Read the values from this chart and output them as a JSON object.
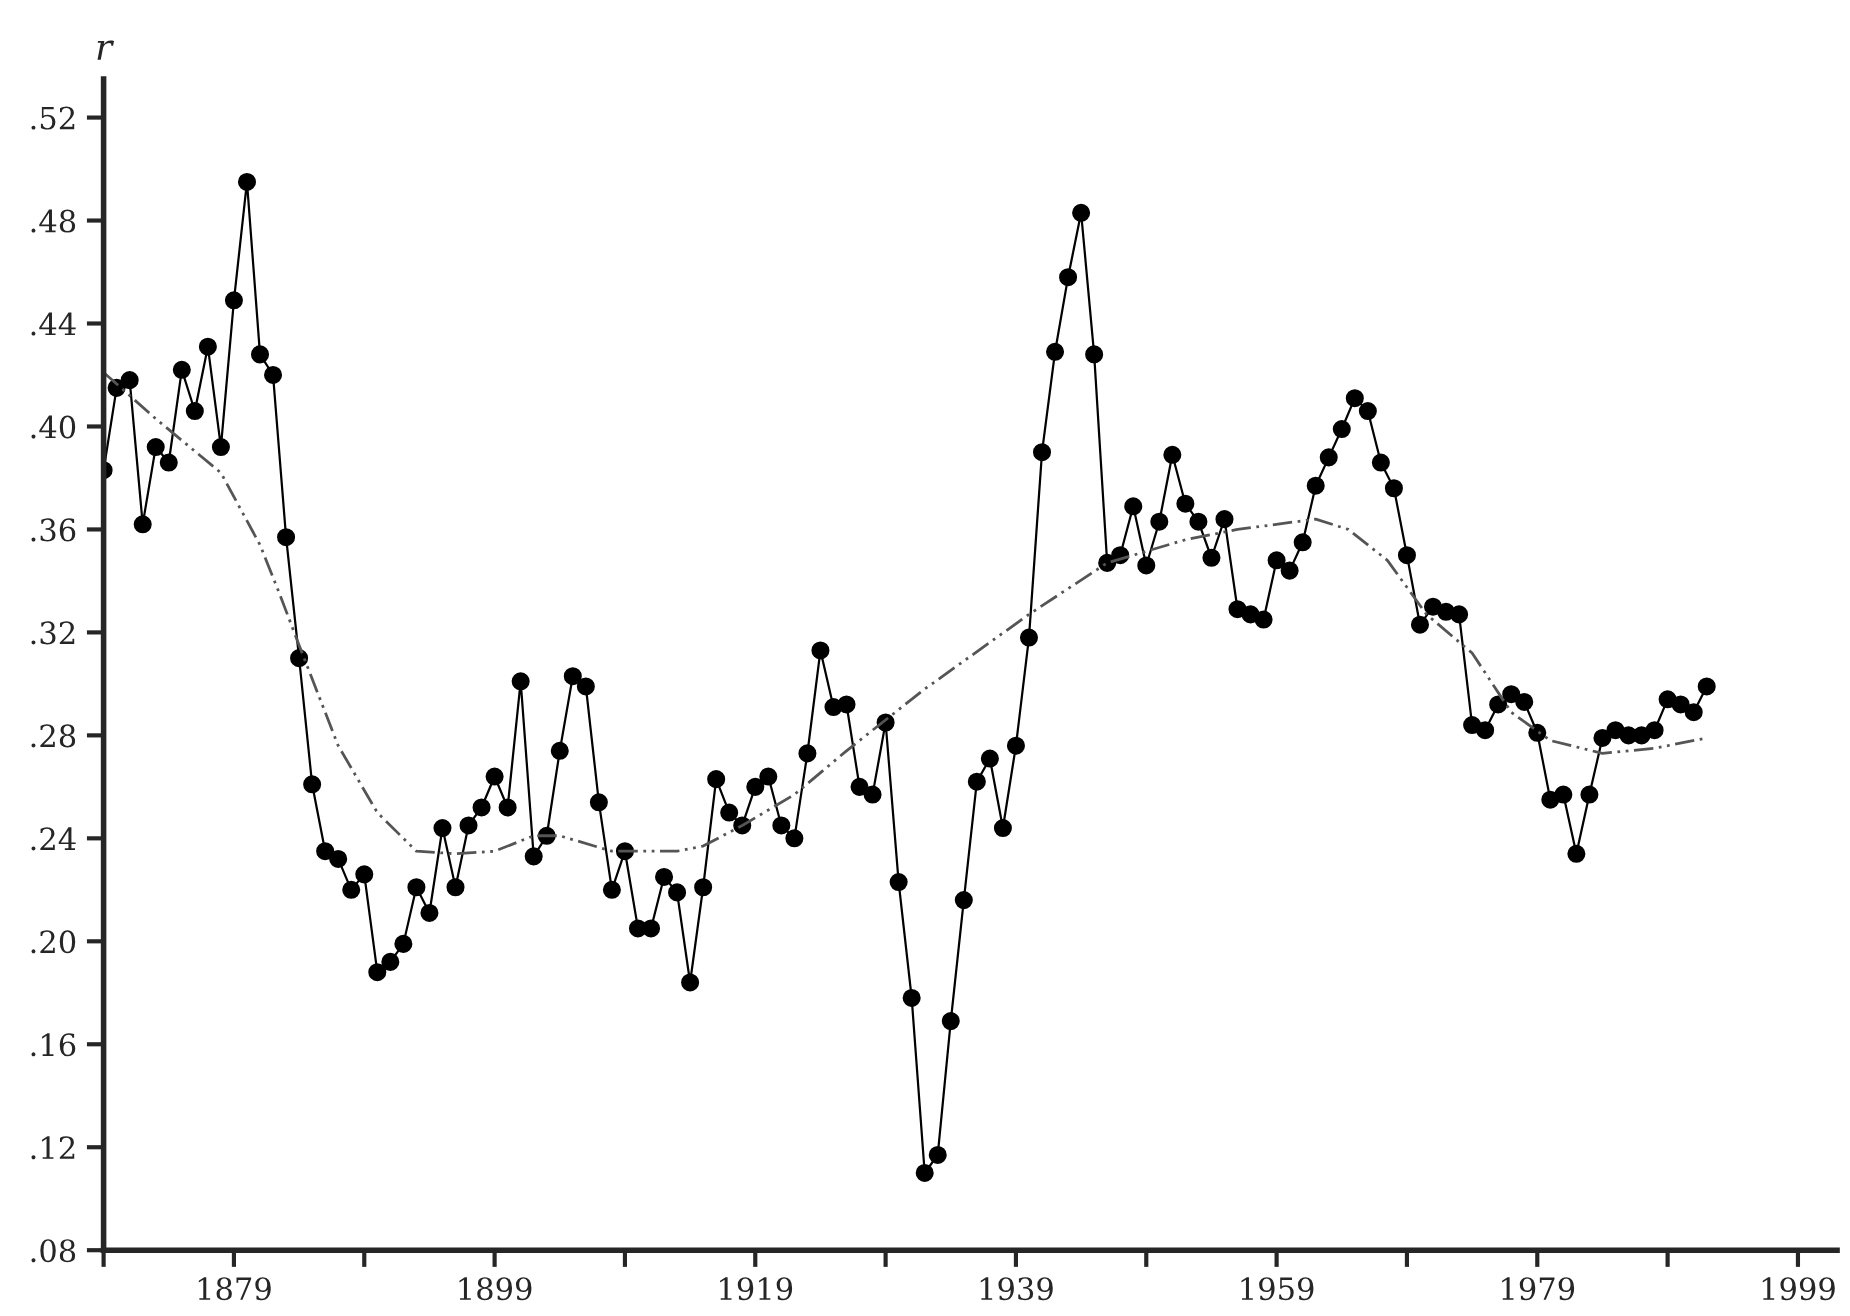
{
  "chart_data": {
    "type": "line",
    "ylabel": "r",
    "xlim": [
      1869,
      2002
    ],
    "ylim": [
      0.08,
      0.535
    ],
    "xticks": [
      {
        "value": 1869,
        "label": null
      },
      1879,
      {
        "value": 1889,
        "label": null
      },
      1899,
      {
        "value": 1909,
        "label": null
      },
      1919,
      {
        "value": 1929,
        "label": null
      },
      1939,
      {
        "value": 1949,
        "label": null
      },
      1959,
      {
        "value": 1969,
        "label": null
      },
      1979,
      {
        "value": 1989,
        "label": null
      },
      1999
    ],
    "yticks": [
      {
        "value": 0.08,
        "label": ".08"
      },
      {
        "value": 0.12,
        "label": ".12"
      },
      {
        "value": 0.16,
        "label": ".16"
      },
      {
        "value": 0.2,
        "label": ".20"
      },
      {
        "value": 0.24,
        "label": ".24"
      },
      {
        "value": 0.28,
        "label": ".28"
      },
      {
        "value": 0.32,
        "label": ".32"
      },
      {
        "value": 0.36,
        "label": ".36"
      },
      {
        "value": 0.4,
        "label": ".40"
      },
      {
        "value": 0.44,
        "label": ".44"
      },
      {
        "value": 0.48,
        "label": ".48"
      },
      {
        "value": 0.52,
        "label": ".52"
      }
    ],
    "grid": false,
    "legend": false,
    "series": [
      {
        "color": "#000000",
        "marker": "circle",
        "line_style": "solid",
        "x": [
          1869,
          1870,
          1871,
          1872,
          1873,
          1874,
          1875,
          1876,
          1877,
          1878,
          1879,
          1880,
          1881,
          1882,
          1883,
          1884,
          1885,
          1886,
          1887,
          1888,
          1889,
          1890,
          1891,
          1892,
          1893,
          1894,
          1895,
          1896,
          1897,
          1898,
          1899,
          1900,
          1901,
          1902,
          1903,
          1904,
          1905,
          1906,
          1907,
          1908,
          1909,
          1910,
          1911,
          1912,
          1913,
          1914,
          1915,
          1916,
          1917,
          1918,
          1919,
          1920,
          1921,
          1922,
          1923,
          1924,
          1925,
          1926,
          1927,
          1928,
          1929,
          1930,
          1931,
          1932,
          1933,
          1934,
          1935,
          1936,
          1937,
          1938,
          1939,
          1940,
          1941,
          1942,
          1943,
          1944,
          1945,
          1946,
          1947,
          1948,
          1949,
          1950,
          1951,
          1952,
          1953,
          1954,
          1955,
          1956,
          1957,
          1958,
          1959,
          1960,
          1961,
          1962,
          1963,
          1964,
          1965,
          1966,
          1967,
          1968,
          1969,
          1970,
          1971,
          1972,
          1973,
          1974,
          1975,
          1976,
          1977,
          1978,
          1979,
          1980,
          1981,
          1982,
          1983,
          1984,
          1985,
          1986,
          1987,
          1988,
          1989,
          1990,
          1991,
          1992
        ],
        "values": [
          0.383,
          0.415,
          0.418,
          0.362,
          0.392,
          0.386,
          0.422,
          0.406,
          0.431,
          0.392,
          0.449,
          0.495,
          0.428,
          0.42,
          0.357,
          0.31,
          0.261,
          0.235,
          0.232,
          0.22,
          0.226,
          0.188,
          0.192,
          0.199,
          0.221,
          0.211,
          0.244,
          0.221,
          0.245,
          0.252,
          0.264,
          0.252,
          0.301,
          0.233,
          0.241,
          0.274,
          0.303,
          0.299,
          0.254,
          0.22,
          0.235,
          0.205,
          0.205,
          0.225,
          0.219,
          0.184,
          0.221,
          0.263,
          0.25,
          0.245,
          0.26,
          0.264,
          0.245,
          0.24,
          0.273,
          0.313,
          0.291,
          0.292,
          0.26,
          0.257,
          0.285,
          0.223,
          0.178,
          0.11,
          0.117,
          0.169,
          0.216,
          0.262,
          0.271,
          0.244,
          0.276,
          0.318,
          0.39,
          0.429,
          0.458,
          0.483,
          0.428,
          0.347,
          0.35,
          0.369,
          0.346,
          0.363,
          0.389,
          0.37,
          0.363,
          0.349,
          0.364,
          0.329,
          0.327,
          0.325,
          0.348,
          0.344,
          0.355,
          0.377,
          0.388,
          0.399,
          0.411,
          0.406,
          0.386,
          0.376,
          0.35,
          0.323,
          0.33,
          0.328,
          0.327,
          0.284,
          0.282,
          0.292,
          0.296,
          0.293,
          0.281,
          0.255,
          0.257,
          0.234,
          0.257,
          0.279,
          0.282,
          0.28,
          0.28,
          0.282,
          0.294,
          0.292,
          0.289,
          0.299
        ]
      },
      {
        "color": "#555555",
        "marker": "none",
        "line_style": "dashed",
        "x": [
          1869,
          1873,
          1878,
          1881,
          1882.5,
          1884,
          1887,
          1890,
          1893,
          1896,
          1899,
          1902,
          1904,
          1908,
          1913,
          1915,
          1918,
          1922,
          1926,
          1932,
          1940,
          1946,
          1952,
          1956,
          1962,
          1964.5,
          1967.5,
          1970.5,
          1974,
          1977,
          1980,
          1984,
          1988,
          1992
        ],
        "values": [
          0.421,
          0.403,
          0.382,
          0.354,
          0.335,
          0.315,
          0.276,
          0.25,
          0.235,
          0.234,
          0.235,
          0.241,
          0.241,
          0.235,
          0.235,
          0.237,
          0.245,
          0.257,
          0.274,
          0.298,
          0.327,
          0.347,
          0.356,
          0.36,
          0.364,
          0.36,
          0.348,
          0.327,
          0.312,
          0.289,
          0.278,
          0.273,
          0.275,
          0.279
        ]
      }
    ]
  }
}
